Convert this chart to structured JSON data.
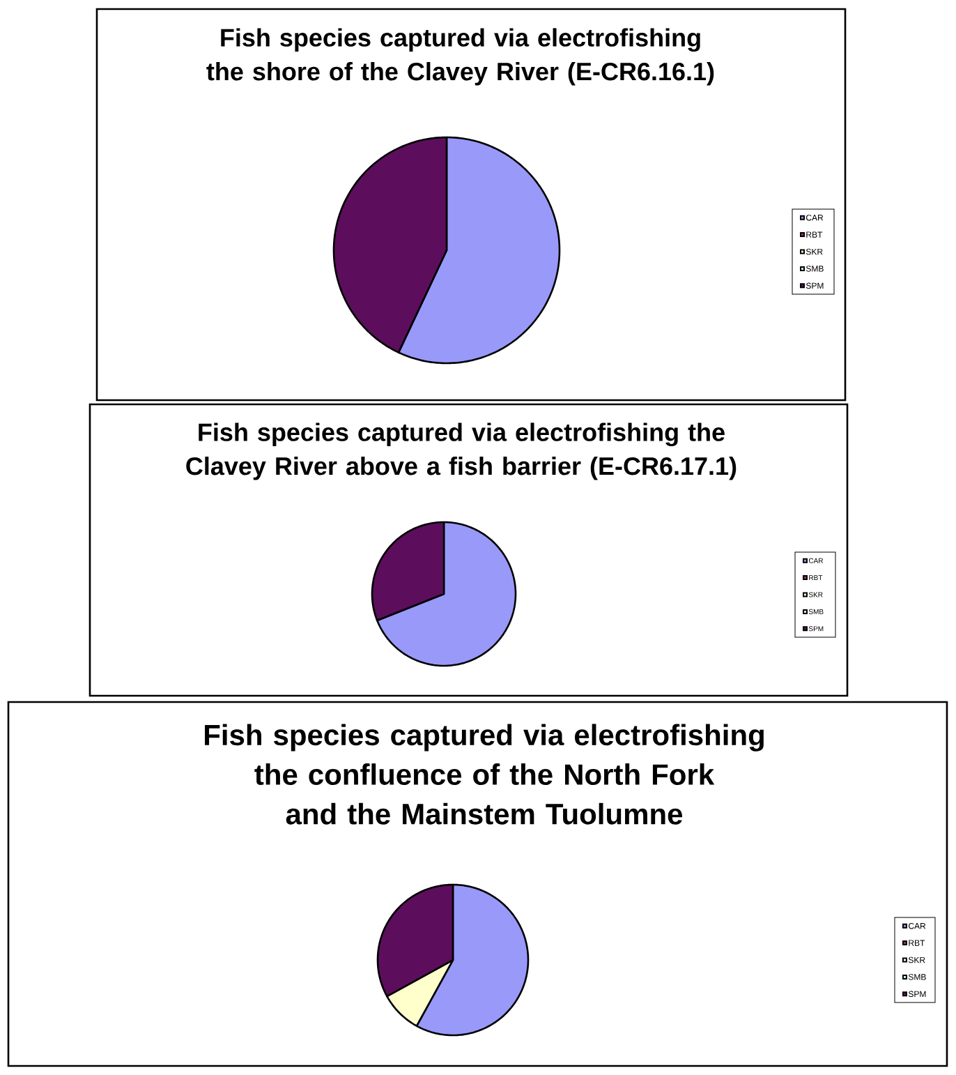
{
  "chart_data": [
    {
      "type": "pie",
      "title": "Fish species captured via electrofishing the shore of the Clavey River (E-CR6.16.1)",
      "categories": [
        "CAR",
        "RBT",
        "SKR",
        "SMB",
        "SPM"
      ],
      "values": [
        57,
        0,
        0,
        0,
        43
      ],
      "colors": [
        "#9999fa",
        "#993366",
        "#ffffcc",
        "#ccffff",
        "#5c0e5c"
      ],
      "legend": "right"
    },
    {
      "type": "pie",
      "title": "Fish species captured via electrofishing the Clavey River above a fish barrier (E-CR6.17.1)",
      "categories": [
        "CAR",
        "RBT",
        "SKR",
        "SMB",
        "SPM"
      ],
      "values": [
        69,
        0,
        0,
        0,
        31
      ],
      "colors": [
        "#9999fa",
        "#993366",
        "#ffffcc",
        "#ccffff",
        "#5c0e5c"
      ],
      "legend": "right"
    },
    {
      "type": "pie",
      "title": "Fish species captured via electrofishing the confluence of the North Fork and the Mainstem Tuolumne",
      "categories": [
        "CAR",
        "RBT",
        "SKR",
        "SMB",
        "SPM"
      ],
      "values": [
        58,
        0,
        9,
        0,
        33
      ],
      "colors": [
        "#9999fa",
        "#993366",
        "#ffffcc",
        "#ccffff",
        "#5c0e5c"
      ],
      "legend": "right"
    }
  ]
}
